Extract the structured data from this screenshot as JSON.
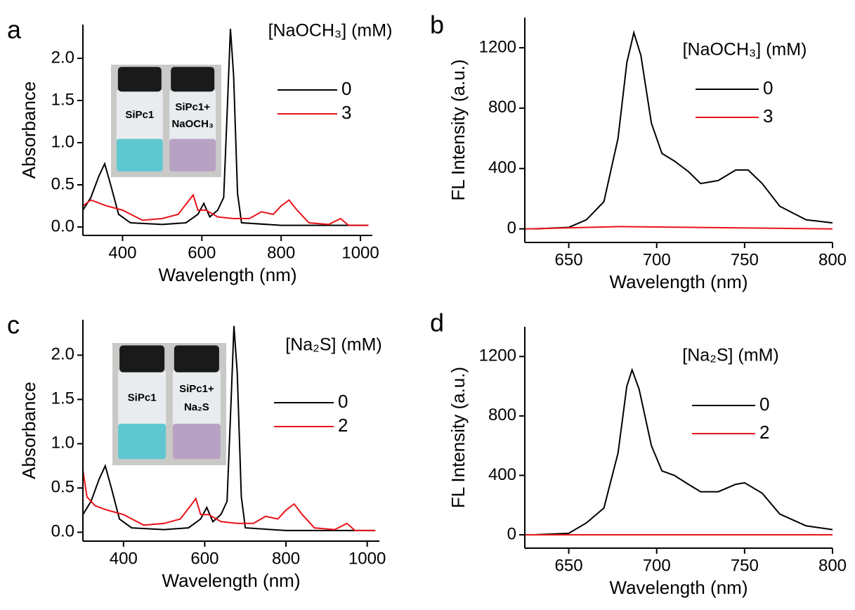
{
  "chart_data": [
    {
      "type": "line",
      "panel": "a",
      "xlabel": "Wavelength (nm)",
      "ylabel": "Absorbance",
      "xlim": [
        300,
        1030
      ],
      "ylim": [
        -0.1,
        2.4
      ],
      "xticks": [
        400,
        600,
        800,
        1000
      ],
      "yticks": [
        {
          "value": 0,
          "label": "0.0"
        },
        0.5,
        {
          "value": 1,
          "label": "1.0"
        },
        1.5,
        {
          "value": 2,
          "label": "2.0"
        }
      ],
      "legend_title": "[NaOCH₃] (mM)",
      "inset_labels": [
        "SiPc1",
        "SiPc1+",
        "NaOCH₃"
      ],
      "series": [
        {
          "name": "0",
          "color": "#000000",
          "x": [
            300,
            320,
            340,
            355,
            370,
            390,
            420,
            500,
            560,
            590,
            605,
            620,
            640,
            655,
            665,
            672,
            680,
            690,
            700,
            800,
            1020
          ],
          "values": [
            0.2,
            0.35,
            0.6,
            0.75,
            0.5,
            0.15,
            0.05,
            0.03,
            0.05,
            0.15,
            0.28,
            0.12,
            0.2,
            0.35,
            1.5,
            2.35,
            1.8,
            0.4,
            0.05,
            0.02,
            0.02
          ]
        },
        {
          "name": "3",
          "color": "#e8141a",
          "x": [
            300,
            320,
            360,
            400,
            450,
            500,
            540,
            565,
            578,
            590,
            610,
            640,
            680,
            720,
            750,
            780,
            800,
            820,
            840,
            870,
            920,
            950,
            970,
            1020
          ],
          "values": [
            0.25,
            0.32,
            0.25,
            0.2,
            0.08,
            0.1,
            0.15,
            0.3,
            0.38,
            0.2,
            0.2,
            0.12,
            0.1,
            0.1,
            0.18,
            0.15,
            0.25,
            0.32,
            0.2,
            0.05,
            0.03,
            0.1,
            0.02,
            0.02
          ]
        }
      ]
    },
    {
      "type": "line",
      "panel": "b",
      "xlabel": "Wavelength (nm)",
      "ylabel": "FL Intensity (a.u.)",
      "xlim": [
        625,
        800
      ],
      "ylim": [
        -90,
        1400
      ],
      "xticks": [
        650,
        700,
        750,
        800
      ],
      "yticks": [
        0,
        400,
        800,
        1200
      ],
      "legend_title": "[NaOCH₃] (mM)",
      "series": [
        {
          "name": "0",
          "color": "#000000",
          "x": [
            630,
            650,
            660,
            670,
            678,
            683,
            687,
            691,
            697,
            703,
            710,
            718,
            725,
            735,
            745,
            752,
            760,
            770,
            785,
            800
          ],
          "values": [
            0,
            10,
            60,
            180,
            600,
            1100,
            1300,
            1150,
            700,
            500,
            450,
            380,
            300,
            320,
            390,
            390,
            300,
            150,
            60,
            40
          ]
        },
        {
          "name": "3",
          "color": "#e8141a",
          "x": [
            625,
            680,
            800
          ],
          "values": [
            0,
            15,
            0
          ]
        }
      ]
    },
    {
      "type": "line",
      "panel": "c",
      "xlabel": "Wavelength (nm)",
      "ylabel": "Absorbance",
      "xlim": [
        300,
        1030
      ],
      "ylim": [
        -0.1,
        2.4
      ],
      "xticks": [
        400,
        600,
        800,
        1000
      ],
      "yticks": [
        {
          "value": 0,
          "label": "0.0"
        },
        0.5,
        {
          "value": 1,
          "label": "1.0"
        },
        1.5,
        {
          "value": 2,
          "label": "2.0"
        }
      ],
      "legend_title": "[Na₂S] (mM)",
      "inset_labels": [
        "SiPc1",
        "SiPc1+",
        "Na₂S"
      ],
      "series": [
        {
          "name": "0",
          "color": "#000000",
          "x": [
            300,
            320,
            340,
            355,
            370,
            390,
            420,
            500,
            560,
            590,
            605,
            620,
            640,
            655,
            665,
            672,
            680,
            690,
            700,
            800,
            1020
          ],
          "values": [
            0.2,
            0.35,
            0.6,
            0.75,
            0.5,
            0.15,
            0.05,
            0.03,
            0.05,
            0.15,
            0.28,
            0.12,
            0.2,
            0.35,
            1.5,
            2.33,
            1.8,
            0.4,
            0.05,
            0.02,
            0.02
          ]
        },
        {
          "name": "2",
          "color": "#e8141a",
          "x": [
            300,
            310,
            330,
            360,
            400,
            450,
            500,
            540,
            565,
            578,
            590,
            610,
            640,
            680,
            720,
            750,
            780,
            800,
            820,
            840,
            870,
            920,
            950,
            970,
            1020
          ],
          "values": [
            0.7,
            0.4,
            0.3,
            0.25,
            0.2,
            0.08,
            0.1,
            0.15,
            0.3,
            0.38,
            0.2,
            0.2,
            0.12,
            0.1,
            0.1,
            0.18,
            0.15,
            0.25,
            0.32,
            0.2,
            0.05,
            0.03,
            0.1,
            0.02,
            0.02
          ]
        }
      ]
    },
    {
      "type": "line",
      "panel": "d",
      "xlabel": "Wavelength (nm)",
      "ylabel": "FL Intensity (a.u.)",
      "xlim": [
        625,
        800
      ],
      "ylim": [
        -90,
        1400
      ],
      "xticks": [
        650,
        700,
        750,
        800
      ],
      "yticks": [
        0,
        400,
        800,
        1200
      ],
      "legend_title": "[Na₂S] (mM)",
      "series": [
        {
          "name": "0",
          "color": "#000000",
          "x": [
            630,
            650,
            660,
            670,
            678,
            683,
            686,
            690,
            697,
            703,
            710,
            718,
            725,
            735,
            745,
            750,
            760,
            770,
            785,
            800
          ],
          "values": [
            0,
            10,
            80,
            180,
            550,
            1000,
            1110,
            980,
            600,
            430,
            400,
            340,
            290,
            290,
            340,
            350,
            280,
            140,
            60,
            35
          ]
        },
        {
          "name": "2",
          "color": "#e8141a",
          "x": [
            625,
            800
          ],
          "values": [
            0,
            0
          ]
        }
      ]
    }
  ]
}
